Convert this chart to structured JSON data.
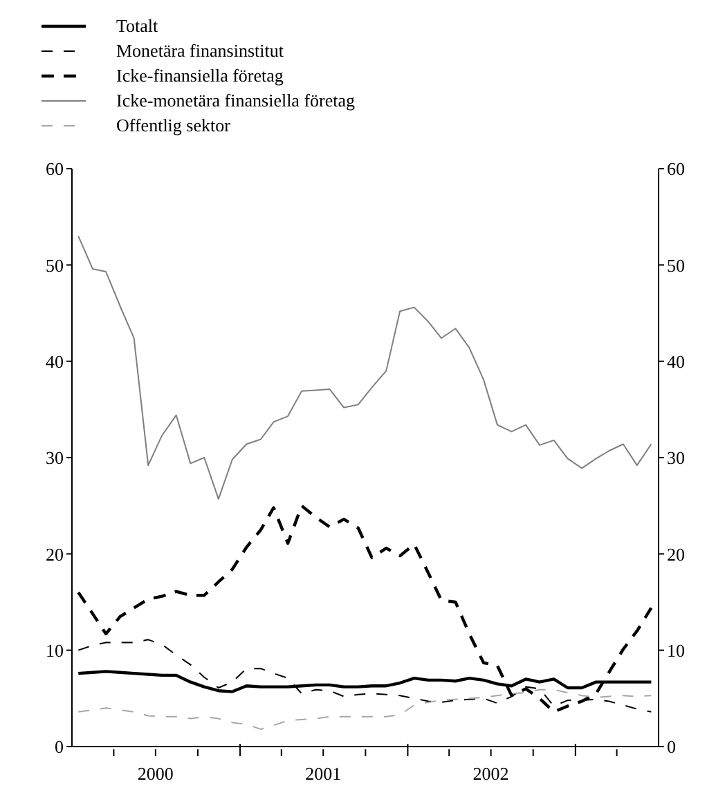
{
  "chart_data": {
    "type": "line",
    "legend": "top left",
    "xlim": [
      "2000-01-01",
      "2003-07-01"
    ],
    "xticks": [
      {
        "value": "2000-04-01",
        "label": null
      },
      {
        "value": "2000-07-01",
        "label": "2000"
      },
      {
        "value": "2000-10-01",
        "label": null
      },
      {
        "value": "2001-01-01",
        "label": null
      },
      {
        "value": "2001-04-01",
        "label": null
      },
      {
        "value": "2001-07-01",
        "label": "2001"
      },
      {
        "value": "2001-10-01",
        "label": null
      },
      {
        "value": "2002-01-01",
        "label": null
      },
      {
        "value": "2002-04-01",
        "label": null
      },
      {
        "value": "2002-07-01",
        "label": "2002"
      },
      {
        "value": "2002-10-01",
        "label": null
      },
      {
        "value": "2003-01-01",
        "label": null
      },
      {
        "value": "2003-04-01",
        "label": null
      }
    ],
    "ylim": [
      0,
      60
    ],
    "yticks": [
      0,
      10,
      20,
      30,
      40,
      50,
      60
    ],
    "y2lim": [
      0,
      60
    ],
    "y2ticks": [
      0,
      10,
      20,
      30,
      40,
      50,
      60
    ],
    "grid": false,
    "marker": "none",
    "x": [
      "2000-01-15",
      "2000-02-15",
      "2000-03-15",
      "2000-04-15",
      "2000-05-15",
      "2000-06-15",
      "2000-07-15",
      "2000-08-15",
      "2000-09-15",
      "2000-10-15",
      "2000-11-15",
      "2000-12-15",
      "2001-01-15",
      "2001-02-15",
      "2001-03-15",
      "2001-04-15",
      "2001-05-15",
      "2001-06-15",
      "2001-07-15",
      "2001-08-15",
      "2001-09-15",
      "2001-10-15",
      "2001-11-15",
      "2001-12-15",
      "2002-01-15",
      "2002-02-15",
      "2002-03-15",
      "2002-04-15",
      "2002-05-15",
      "2002-06-15",
      "2002-07-15",
      "2002-08-15",
      "2002-09-15",
      "2002-10-15",
      "2002-11-15",
      "2002-12-15",
      "2003-01-15",
      "2003-02-15",
      "2003-03-15",
      "2003-04-15",
      "2003-05-15",
      "2003-06-15"
    ],
    "series": [
      {
        "name": "Totalt",
        "color": "#000000",
        "line_style": "solid",
        "values": [
          7.6,
          7.7,
          7.8,
          7.7,
          7.6,
          7.5,
          7.4,
          7.4,
          6.7,
          6.2,
          5.8,
          5.7,
          6.3,
          6.2,
          6.2,
          6.2,
          6.3,
          6.4,
          6.4,
          6.2,
          6.2,
          6.3,
          6.3,
          6.6,
          7.1,
          6.9,
          6.9,
          6.8,
          7.1,
          6.9,
          6.5,
          6.3,
          7.0,
          6.7,
          7.0,
          6.1,
          6.1,
          6.7,
          6.7,
          6.7,
          6.7,
          6.7
        ]
      },
      {
        "name": "Monetära finansinstitut",
        "color": "#000000",
        "line_style": "dashed",
        "values": [
          10.0,
          10.5,
          10.8,
          10.8,
          10.8,
          11.1,
          10.6,
          9.5,
          8.5,
          7.2,
          6.1,
          6.7,
          8.1,
          8.1,
          7.6,
          7.1,
          5.5,
          5.9,
          5.8,
          5.2,
          5.4,
          5.5,
          5.4,
          5.3,
          5.0,
          4.7,
          4.6,
          4.8,
          4.9,
          5.0,
          4.5,
          5.2,
          6.2,
          6.0,
          4.2,
          4.8,
          4.8,
          4.9,
          4.7,
          4.3,
          3.9,
          3.6
        ]
      },
      {
        "name": "Icke-finansiella företag",
        "color": "#000000",
        "line_style": "dashed",
        "values": [
          16.0,
          13.8,
          11.7,
          13.5,
          14.4,
          15.3,
          15.6,
          16.1,
          15.7,
          15.7,
          17.1,
          18.4,
          20.7,
          22.5,
          24.8,
          21.1,
          25.0,
          23.8,
          22.8,
          23.6,
          22.7,
          19.6,
          20.6,
          19.8,
          21.0,
          18.0,
          15.2,
          15.0,
          11.7,
          8.7,
          8.4,
          5.3,
          6.0,
          5.0,
          3.6,
          4.2,
          4.7,
          5.5,
          7.7,
          10.1,
          12.0,
          14.4
        ]
      },
      {
        "name": "Icke-monetära finansiella företag",
        "color": "#7f7f7f",
        "line_style": "solid",
        "values": [
          53.0,
          49.6,
          49.3,
          45.7,
          42.4,
          29.2,
          32.3,
          34.4,
          29.4,
          30.0,
          25.7,
          29.8,
          31.4,
          31.9,
          33.7,
          34.3,
          36.9,
          37.0,
          37.1,
          35.2,
          35.5,
          37.3,
          39.0,
          45.2,
          45.6,
          44.1,
          42.4,
          43.4,
          41.4,
          38.1,
          33.4,
          32.7,
          33.4,
          31.3,
          31.8,
          29.9,
          28.9,
          29.9,
          30.7,
          31.4,
          29.2,
          31.4
        ]
      },
      {
        "name": "Offentlig sektor",
        "color": "#a6a6a6",
        "line_style": "dashed",
        "values": [
          3.6,
          3.8,
          4.0,
          3.8,
          3.6,
          3.2,
          3.1,
          3.1,
          2.9,
          3.1,
          2.9,
          2.5,
          2.3,
          1.8,
          2.2,
          2.7,
          2.8,
          2.9,
          3.1,
          3.1,
          3.1,
          3.1,
          3.1,
          3.3,
          4.3,
          4.6,
          4.8,
          4.9,
          5.0,
          5.1,
          5.3,
          5.5,
          5.6,
          5.9,
          5.9,
          5.6,
          5.3,
          5.1,
          5.2,
          5.3,
          5.2,
          5.3
        ]
      }
    ]
  }
}
